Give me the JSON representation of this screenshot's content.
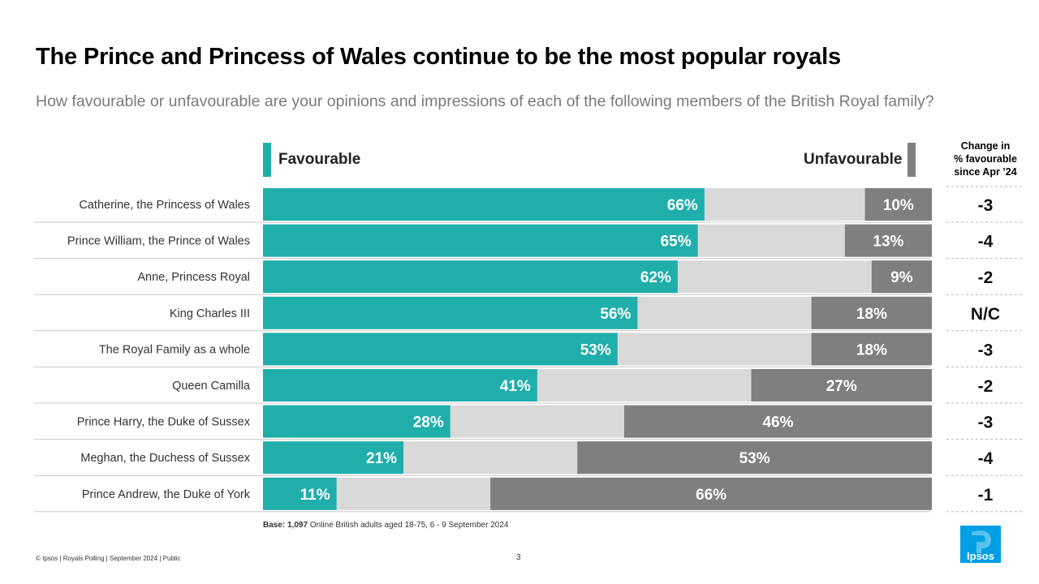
{
  "title": "The Prince and Princess of Wales continue to be the most popular royals",
  "subtitle": "How favourable or unfavourable are your opinions and impressions of each of the following members of the British Royal family?",
  "legend": {
    "favourable": "Favourable",
    "unfavourable": "Unfavourable"
  },
  "change_header": [
    "Change in",
    "% favourable",
    "since Apr ’24"
  ],
  "colors": {
    "favourable": "#20aeab",
    "neutral": "#d9d9d9",
    "unfavourable": "#7f7f7f",
    "accent": "#009fe3"
  },
  "chart_data": {
    "type": "bar",
    "stacked": true,
    "orientation": "horizontal",
    "categories": [
      "Catherine, the Princess of Wales",
      "Prince William, the Prince of Wales",
      "Anne, Princess Royal",
      "King Charles III",
      "The Royal Family as a whole",
      "Queen Camilla",
      "Prince Harry, the Duke of Sussex",
      "Meghan, the Duchess of Sussex",
      "Prince Andrew, the Duke of York"
    ],
    "series": [
      {
        "name": "Favourable",
        "values": [
          66,
          65,
          62,
          56,
          53,
          41,
          28,
          21,
          11
        ]
      },
      {
        "name": "Unfavourable",
        "values": [
          10,
          13,
          9,
          18,
          18,
          27,
          46,
          53,
          66
        ]
      }
    ],
    "change": [
      "-3",
      "-4",
      "-2",
      "N/C",
      "-3",
      "-2",
      "-3",
      "-4",
      "-1"
    ],
    "xlim": [
      0,
      100
    ]
  },
  "base": {
    "label": "Base:",
    "n": "1,097",
    "text": "Online British adults aged 18-75, 6 - 9 September 2024"
  },
  "footer": "© Ipsos | Royals Polling | September 2024 | Public",
  "page_number": "3",
  "logo_text": "Ipsos"
}
